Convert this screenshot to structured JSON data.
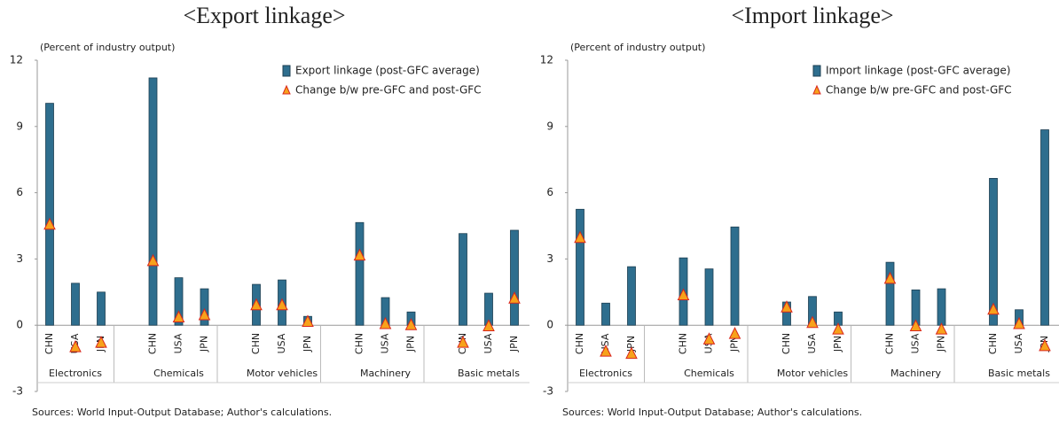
{
  "chart_data": [
    {
      "type": "bar",
      "subtitle": "<Export linkage>",
      "y_label": "(Percent of industry output)",
      "categories": [
        "CHN",
        "USA",
        "JPN",
        "CHN",
        "USA",
        "JPN",
        "CHN",
        "USA",
        "JPN",
        "CHN",
        "USA",
        "JPN",
        "CHN",
        "USA",
        "JPN"
      ],
      "groups": [
        "Electronics",
        "Chemicals",
        "Motor vehicles",
        "Machinery",
        "Basic metals"
      ],
      "series": [
        {
          "name": "Export linkage (post-GFC average)",
          "color": "#2e6e8e",
          "values": [
            10.05,
            1.9,
            1.5,
            11.2,
            2.15,
            1.65,
            1.85,
            2.05,
            0.4,
            4.65,
            1.25,
            0.6,
            4.15,
            1.45,
            4.3
          ]
        },
        {
          "name": "Change b/w pre-GFC and post-GFC",
          "color": "#f7a21b",
          "marker": "triangle",
          "values": [
            4.55,
            -1.0,
            -0.8,
            2.9,
            0.35,
            0.45,
            0.9,
            0.9,
            0.15,
            3.15,
            0.05,
            0.0,
            -0.8,
            -0.05,
            1.2
          ]
        }
      ],
      "ylim": [
        -3,
        12
      ],
      "yticks": [
        -3,
        0,
        3,
        6,
        9,
        12
      ],
      "legend": "upper right",
      "source": "Sources: World Input-Output Database; Author's calculations."
    },
    {
      "type": "bar",
      "subtitle": "<Import linkage>",
      "y_label": "(Percent of industry output)",
      "categories": [
        "CHN",
        "USA",
        "JPN",
        "CHN",
        "USA",
        "JPN",
        "CHN",
        "USA",
        "JPN",
        "CHN",
        "USA",
        "JPN",
        "CHN",
        "USA",
        "JPN"
      ],
      "groups": [
        "Electronics",
        "Chemicals",
        "Motor vehicles",
        "Machinery",
        "Basic metals"
      ],
      "series": [
        {
          "name": "Import linkage (post-GFC average)",
          "color": "#2e6e8e",
          "values": [
            5.25,
            1.0,
            2.65,
            3.05,
            2.55,
            4.45,
            1.05,
            1.3,
            0.6,
            2.85,
            1.6,
            1.65,
            6.65,
            0.7,
            8.85
          ]
        },
        {
          "name": "Change b/w pre-GFC and post-GFC",
          "color": "#f7a21b",
          "marker": "triangle",
          "values": [
            3.95,
            -1.2,
            -1.3,
            1.35,
            -0.65,
            -0.4,
            0.8,
            0.1,
            -0.2,
            2.1,
            -0.05,
            -0.2,
            0.7,
            0.05,
            -0.95
          ]
        }
      ],
      "ylim": [
        -3,
        12
      ],
      "yticks": [
        -3,
        0,
        3,
        6,
        9,
        12
      ],
      "legend": "upper right",
      "source": "Sources: World Input-Output Database; Author's calculations."
    }
  ]
}
